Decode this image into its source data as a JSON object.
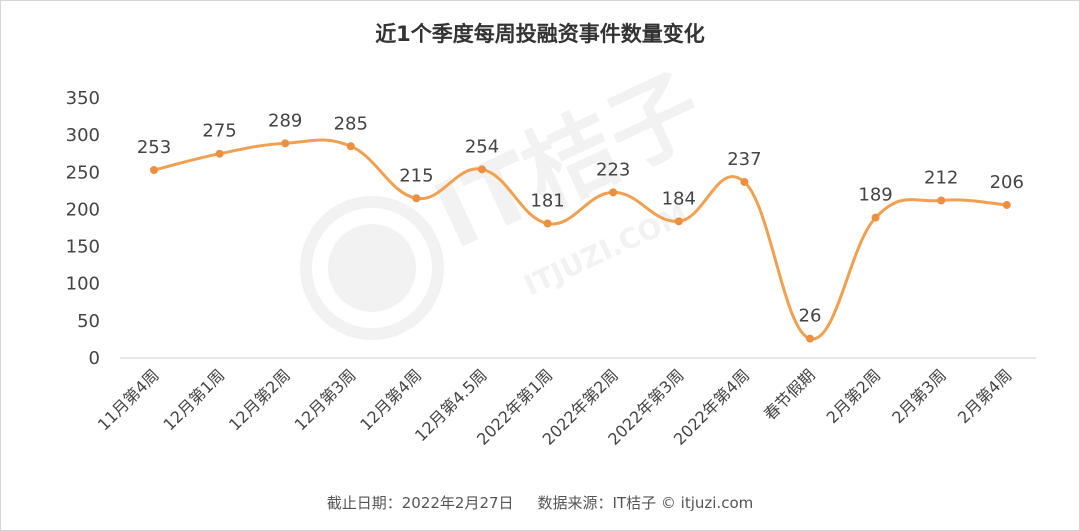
{
  "chart_data": {
    "type": "line",
    "title": "近1个季度每周投融资事件数量变化",
    "categories": [
      "11月第4周",
      "12月第1周",
      "12月第2周",
      "12月第3周",
      "12月第4周",
      "12月第4.5周",
      "2022年第1周",
      "2022年第2周",
      "2022年第3周",
      "2022年第4周",
      "春节假期",
      "2月第2周",
      "2月第3周",
      "2月第4周"
    ],
    "series": [
      {
        "values": [
          253,
          275,
          289,
          285,
          215,
          254,
          181,
          223,
          184,
          237,
          26,
          189,
          212,
          206
        ]
      }
    ],
    "ylim": [
      0,
      350
    ],
    "yticks": [
      0,
      50,
      100,
      150,
      200,
      250,
      300,
      350
    ],
    "grid": false,
    "legend": "none",
    "line_color": "#f0a050",
    "marker_color": "#ec9040"
  },
  "footer": {
    "date": "截止日期：2022年2月27日",
    "source": "数据来源：IT桔子 © itjuzi.com"
  },
  "watermark": {
    "brand": "IT桔子",
    "url": "ITJUZI.COM"
  }
}
